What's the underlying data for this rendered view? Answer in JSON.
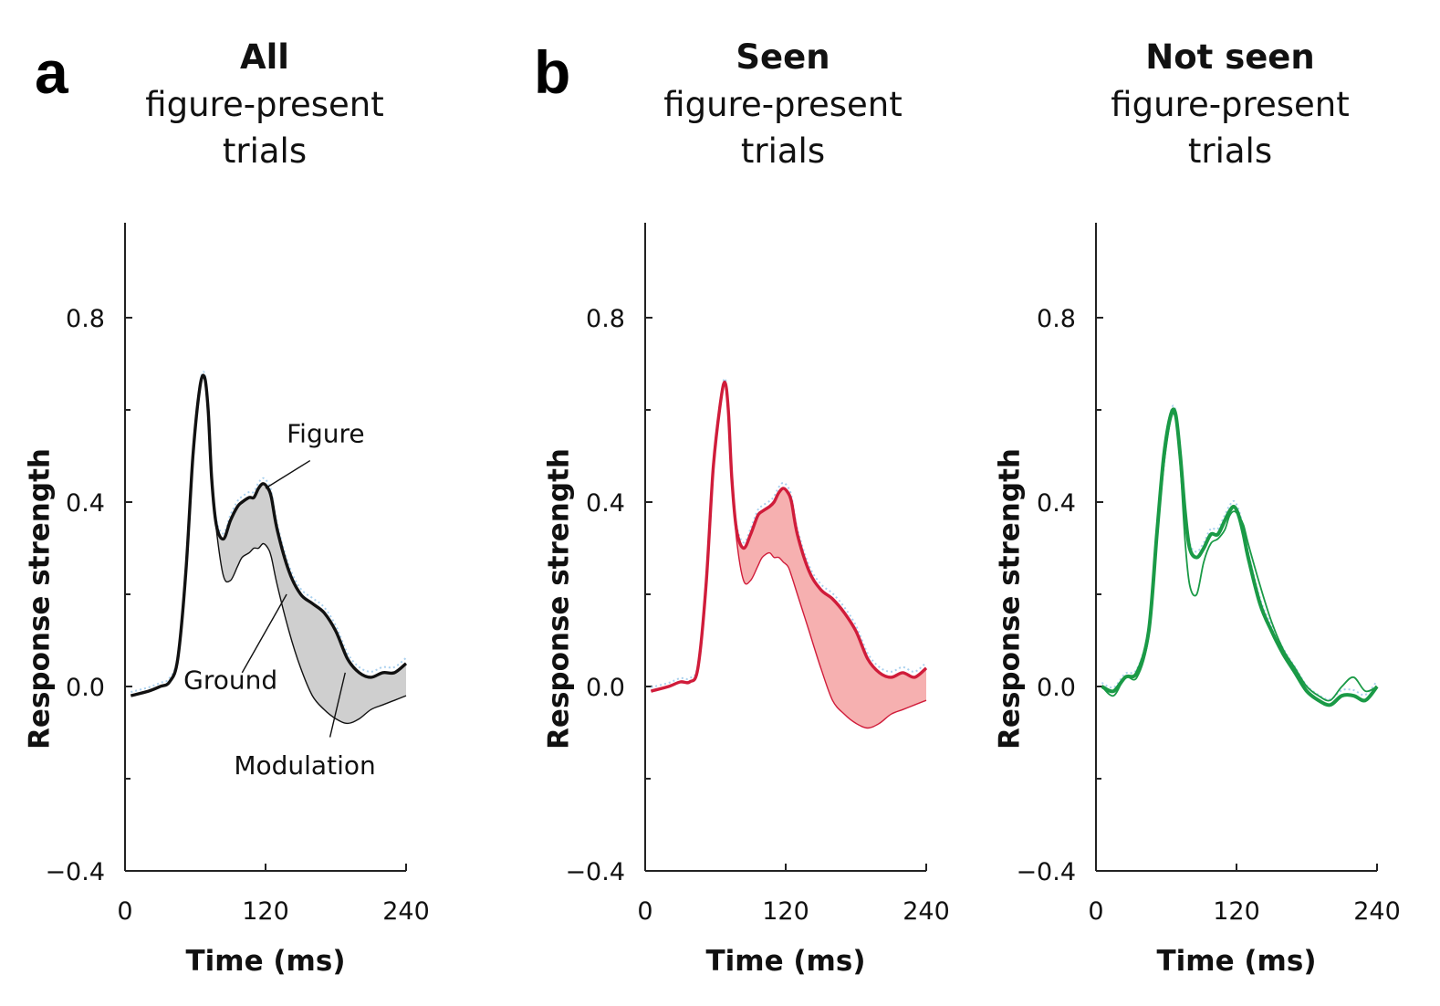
{
  "panel_labels": {
    "a": "a",
    "b": "b"
  },
  "chart_data": [
    {
      "type": "line",
      "panel": "a",
      "title_bold": "All",
      "title_lines": [
        "figure-present",
        "trials"
      ],
      "xlabel": "Time (ms)",
      "ylabel": "Response strength",
      "xlim": [
        0,
        240
      ],
      "ylim": [
        -0.4,
        0.8
      ],
      "xticks": [
        0,
        120,
        240
      ],
      "xtick_labels": [
        "0",
        "120",
        "240"
      ],
      "yticks": [
        -0.4,
        0.0,
        0.4,
        0.8
      ],
      "ytick_labels": [
        "−0.4",
        "0.0",
        "0.4",
        "0.8"
      ],
      "colors": {
        "line": "#111111",
        "fill": "#cfcfcf",
        "faint": "#a9d0ee"
      },
      "shaded_modulation": true,
      "annotations": [
        {
          "text": "Figure",
          "x": 138,
          "y": 0.53,
          "tip": [
            120,
            0.43
          ],
          "anchor": [
            158,
            0.49
          ]
        },
        {
          "text": "Ground",
          "x": 50,
          "y": -0.005,
          "tip": [
            138,
            0.2
          ],
          "anchor": [
            100,
            0.03
          ]
        },
        {
          "text": "Modulation",
          "x": 93,
          "y": -0.19,
          "tip": [
            188,
            0.03
          ],
          "anchor": [
            175,
            -0.11
          ]
        }
      ],
      "series": [
        {
          "name": "Figure",
          "role": "figure",
          "x": [
            5,
            20,
            30,
            38,
            45,
            52,
            58,
            64,
            68,
            71,
            74,
            78,
            84,
            90,
            96,
            100,
            106,
            110,
            114,
            118,
            122,
            125,
            130,
            140,
            150,
            160,
            170,
            180,
            190,
            200,
            210,
            220,
            230,
            240
          ],
          "values": [
            -0.02,
            -0.01,
            0.0,
            0.01,
            0.06,
            0.25,
            0.5,
            0.65,
            0.67,
            0.6,
            0.45,
            0.35,
            0.32,
            0.36,
            0.39,
            0.4,
            0.41,
            0.41,
            0.43,
            0.44,
            0.43,
            0.41,
            0.34,
            0.25,
            0.2,
            0.18,
            0.16,
            0.12,
            0.06,
            0.03,
            0.02,
            0.03,
            0.03,
            0.05
          ]
        },
        {
          "name": "Ground",
          "role": "ground",
          "x": [
            5,
            20,
            30,
            38,
            45,
            52,
            58,
            64,
            68,
            71,
            74,
            78,
            84,
            90,
            96,
            100,
            106,
            110,
            114,
            118,
            122,
            125,
            130,
            140,
            150,
            160,
            170,
            180,
            190,
            200,
            210,
            220,
            230,
            240
          ],
          "values": [
            -0.02,
            -0.01,
            0.0,
            0.01,
            0.06,
            0.25,
            0.5,
            0.65,
            0.67,
            0.6,
            0.45,
            0.34,
            0.24,
            0.23,
            0.26,
            0.28,
            0.29,
            0.3,
            0.3,
            0.31,
            0.3,
            0.28,
            0.22,
            0.12,
            0.04,
            -0.02,
            -0.05,
            -0.07,
            -0.08,
            -0.07,
            -0.05,
            -0.04,
            -0.03,
            -0.02
          ]
        }
      ]
    },
    {
      "type": "line",
      "panel": "b",
      "title_bold": "Seen",
      "title_lines": [
        "figure-present",
        "trials"
      ],
      "xlabel": "Time (ms)",
      "ylabel": "Response strength",
      "xlim": [
        0,
        240
      ],
      "ylim": [
        -0.4,
        0.8
      ],
      "xticks": [
        0,
        120,
        240
      ],
      "xtick_labels": [
        "0",
        "120",
        "240"
      ],
      "yticks": [
        -0.4,
        0.0,
        0.4,
        0.8
      ],
      "ytick_labels": [
        "−0.4",
        "0.0",
        "0.4",
        "0.8"
      ],
      "colors": {
        "line": "#d01c3a",
        "fill": "#f6b0b0",
        "faint": "#a9d0ee"
      },
      "shaded_modulation": true,
      "annotations": [],
      "series": [
        {
          "name": "Figure",
          "role": "figure",
          "x": [
            5,
            20,
            30,
            38,
            45,
            52,
            58,
            64,
            68,
            71,
            74,
            78,
            84,
            90,
            96,
            100,
            106,
            110,
            114,
            118,
            122,
            125,
            130,
            140,
            150,
            160,
            170,
            180,
            190,
            200,
            210,
            220,
            230,
            240
          ],
          "values": [
            -0.01,
            0.0,
            0.01,
            0.01,
            0.04,
            0.22,
            0.47,
            0.61,
            0.66,
            0.6,
            0.45,
            0.34,
            0.3,
            0.33,
            0.37,
            0.38,
            0.39,
            0.4,
            0.42,
            0.43,
            0.42,
            0.4,
            0.33,
            0.25,
            0.21,
            0.19,
            0.16,
            0.12,
            0.06,
            0.03,
            0.02,
            0.03,
            0.02,
            0.04
          ]
        },
        {
          "name": "Ground",
          "role": "ground",
          "x": [
            5,
            20,
            30,
            38,
            45,
            52,
            58,
            64,
            68,
            71,
            74,
            78,
            84,
            90,
            96,
            100,
            106,
            110,
            114,
            118,
            122,
            125,
            130,
            140,
            150,
            160,
            170,
            180,
            190,
            200,
            210,
            220,
            230,
            240
          ],
          "values": [
            -0.01,
            0.0,
            0.01,
            0.01,
            0.04,
            0.22,
            0.47,
            0.61,
            0.66,
            0.6,
            0.45,
            0.32,
            0.23,
            0.23,
            0.26,
            0.28,
            0.29,
            0.28,
            0.28,
            0.27,
            0.26,
            0.24,
            0.2,
            0.12,
            0.04,
            -0.03,
            -0.06,
            -0.08,
            -0.09,
            -0.08,
            -0.06,
            -0.05,
            -0.04,
            -0.03
          ]
        }
      ]
    },
    {
      "type": "line",
      "panel": "b",
      "title_bold": "Not seen",
      "title_lines": [
        "figure-present",
        "trials"
      ],
      "xlabel": "Time (ms)",
      "ylabel": "Response strength",
      "xlim": [
        0,
        240
      ],
      "ylim": [
        -0.4,
        0.8
      ],
      "xticks": [
        0,
        120,
        240
      ],
      "xtick_labels": [
        "0",
        "120",
        "240"
      ],
      "yticks": [
        -0.4,
        0.0,
        0.4,
        0.8
      ],
      "ytick_labels": [
        "−0.4",
        "0.0",
        "0.4",
        "0.8"
      ],
      "colors": {
        "line": "#1a9a46",
        "fill": "none",
        "faint": "#a9d0ee"
      },
      "shaded_modulation": false,
      "annotations": [],
      "series": [
        {
          "name": "Figure",
          "role": "figure",
          "x": [
            5,
            15,
            25,
            35,
            45,
            52,
            58,
            64,
            68,
            72,
            76,
            80,
            86,
            92,
            98,
            104,
            110,
            114,
            118,
            122,
            126,
            130,
            140,
            150,
            160,
            170,
            180,
            190,
            200,
            210,
            220,
            230,
            240
          ],
          "values": [
            0.0,
            -0.01,
            0.02,
            0.03,
            0.12,
            0.33,
            0.5,
            0.59,
            0.59,
            0.5,
            0.38,
            0.3,
            0.28,
            0.3,
            0.33,
            0.33,
            0.36,
            0.38,
            0.39,
            0.37,
            0.33,
            0.28,
            0.18,
            0.12,
            0.07,
            0.03,
            -0.01,
            -0.03,
            -0.04,
            -0.02,
            -0.02,
            -0.03,
            0.0
          ]
        },
        {
          "name": "Ground",
          "role": "ground",
          "x": [
            5,
            15,
            25,
            35,
            45,
            52,
            58,
            64,
            68,
            72,
            76,
            80,
            86,
            92,
            98,
            104,
            110,
            114,
            118,
            122,
            126,
            130,
            140,
            150,
            160,
            170,
            180,
            190,
            200,
            210,
            220,
            230,
            240
          ],
          "values": [
            0.0,
            -0.02,
            0.02,
            0.02,
            0.11,
            0.32,
            0.48,
            0.58,
            0.58,
            0.48,
            0.32,
            0.22,
            0.2,
            0.27,
            0.31,
            0.32,
            0.34,
            0.37,
            0.38,
            0.37,
            0.35,
            0.31,
            0.22,
            0.14,
            0.08,
            0.04,
            0.0,
            -0.02,
            -0.03,
            0.0,
            0.02,
            -0.01,
            0.0
          ]
        }
      ]
    }
  ]
}
